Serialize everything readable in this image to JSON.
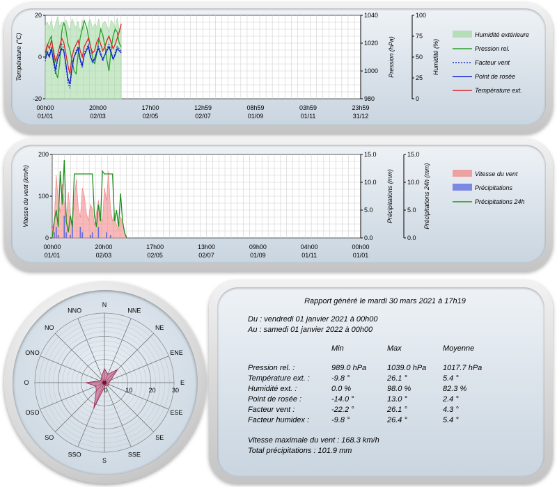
{
  "colors": {
    "humidity": "#9fd79f",
    "pressure": "#2a9d2a",
    "windchill": "#2030c8",
    "dewpoint": "#1020d0",
    "temperature": "#e0202a",
    "wind": "#f08080",
    "rain": "#5060e0",
    "rain24": "#1f8f1f",
    "rose": "#c04070"
  },
  "chart1": {
    "ylabel_left": "Température (°C)",
    "ylabel_right1": "Pression (hPa)",
    "ylabel_right2": "Humidité (%)",
    "left_ticks": [
      "20",
      "0",
      "-20"
    ],
    "right1_ticks": [
      "1040",
      "1020",
      "1000",
      "980"
    ],
    "right2_ticks": [
      "100",
      "75",
      "50",
      "25",
      "0"
    ],
    "x_ticks": [
      {
        "t": "00h00",
        "d": "01/01"
      },
      {
        "t": "20h00",
        "d": "02/03"
      },
      {
        "t": "17h00",
        "d": "02/05"
      },
      {
        "t": "12h59",
        "d": "02/07"
      },
      {
        "t": "08h59",
        "d": "01/09"
      },
      {
        "t": "03h59",
        "d": "01/11"
      },
      {
        "t": "23h59",
        "d": "31/12"
      }
    ],
    "legend": [
      "Humidité extérieure",
      "Pression rel.",
      "Facteur vent",
      "Point de rosée",
      "Température ext."
    ]
  },
  "chart2": {
    "ylabel_left": "Vitesse du vent (km/h)",
    "ylabel_right1": "Précipitations (mm)",
    "ylabel_right2": "Précipitations 24h (mm)",
    "left_ticks": [
      "200",
      "100",
      "0"
    ],
    "right1_ticks": [
      "15.0",
      "10.0",
      "5.0",
      "0.0"
    ],
    "right2_ticks": [
      "15.0",
      "10.0",
      "5.0",
      "0.0"
    ],
    "x_ticks": [
      {
        "t": "00h00",
        "d": "01/01"
      },
      {
        "t": "20h00",
        "d": "02/03"
      },
      {
        "t": "17h00",
        "d": "02/05"
      },
      {
        "t": "13h00",
        "d": "02/07"
      },
      {
        "t": "09h00",
        "d": "01/09"
      },
      {
        "t": "04h00",
        "d": "01/11"
      },
      {
        "t": "00h00",
        "d": "01/01"
      }
    ],
    "legend": [
      "Vitesse du vent",
      "Précipitations",
      "Précipitations 24h"
    ]
  },
  "rose": {
    "directions": [
      "N",
      "NNE",
      "NE",
      "ENE",
      "E",
      "ESE",
      "SE",
      "SSE",
      "S",
      "SSO",
      "SO",
      "OSO",
      "O",
      "ONO",
      "NO",
      "NNO"
    ],
    "ring_labels": [
      "0",
      "10",
      "20",
      "30"
    ]
  },
  "chart_data": [
    {
      "type": "line",
      "title": "",
      "x_range": [
        "2021-01-01 00:00",
        "2021-12-31 23:59"
      ],
      "series": [
        {
          "name": "Humidité extérieure",
          "axis": "Humidité (%)",
          "kind": "area",
          "ylim": [
            0,
            100
          ],
          "x_end": "2021-03-30",
          "values": [
            88,
            92,
            85,
            95,
            80,
            90,
            98,
            86,
            92,
            78,
            95,
            88,
            82,
            96,
            90,
            85,
            93,
            80,
            94,
            88,
            75,
            92,
            95,
            84,
            90,
            86,
            96,
            82,
            90,
            93,
            88,
            80,
            94,
            91,
            85,
            97,
            83,
            90
          ]
        },
        {
          "name": "Pression rel.",
          "axis": "Pression (hPa)",
          "ylim": [
            980,
            1040
          ],
          "x_end": "2021-03-30",
          "values": [
            1010,
            1018,
            1022,
            1025,
            1012,
            1000,
            995,
            1005,
            1028,
            1035,
            1030,
            1020,
            1015,
            1008,
            1000,
            998,
            1012,
            1024,
            1030,
            1036,
            1032,
            1025,
            1018,
            1010,
            1005,
            1012,
            1022,
            1030,
            1026,
            1018,
            1008,
            1000,
            1015,
            1025,
            1030,
            1028,
            1020,
            1017
          ]
        },
        {
          "name": "Facteur vent",
          "axis": "Température (°C)",
          "ylim": [
            -20,
            20
          ],
          "x_end": "2021-03-30",
          "values": [
            -2,
            3,
            1,
            5,
            -3,
            -8,
            -1,
            2,
            6,
            4,
            -4,
            -12,
            -15,
            -6,
            0,
            3,
            5,
            -2,
            -5,
            2,
            4,
            6,
            1,
            -3,
            -1,
            3,
            5,
            2,
            -2,
            1,
            4,
            6,
            3,
            -1,
            2,
            5,
            4,
            3
          ]
        },
        {
          "name": "Point de rosée",
          "axis": "Température (°C)",
          "ylim": [
            -20,
            20
          ],
          "x_end": "2021-03-30",
          "values": [
            -1,
            2,
            0,
            4,
            -2,
            -6,
            -1,
            1,
            4,
            3,
            -3,
            -10,
            -13,
            -5,
            0,
            2,
            4,
            -1,
            -4,
            1,
            3,
            5,
            0,
            -2,
            -1,
            2,
            4,
            1,
            -1,
            1,
            3,
            5,
            2,
            -1,
            1,
            4,
            3,
            2
          ]
        },
        {
          "name": "Température ext.",
          "axis": "Température (°C)",
          "ylim": [
            -20,
            20
          ],
          "x_end": "2021-03-30",
          "values": [
            2,
            6,
            4,
            8,
            3,
            -2,
            1,
            5,
            9,
            7,
            2,
            -4,
            -8,
            0,
            4,
            6,
            8,
            3,
            0,
            5,
            7,
            9,
            5,
            2,
            3,
            7,
            9,
            6,
            3,
            5,
            8,
            10,
            7,
            4,
            6,
            9,
            12,
            16
          ]
        }
      ]
    },
    {
      "type": "line",
      "title": "",
      "x_range": [
        "2021-01-01 00:00",
        "2022-01-01 00:00"
      ],
      "series": [
        {
          "name": "Vitesse du vent",
          "axis": "Vitesse du vent (km/h)",
          "kind": "area",
          "ylim": [
            0,
            200
          ],
          "x_end": "2021-03-30",
          "values": [
            20,
            40,
            150,
            90,
            60,
            130,
            80,
            40,
            110,
            60,
            30,
            90,
            140,
            70,
            50,
            120,
            100,
            60,
            40,
            80,
            70,
            30,
            60,
            90,
            50,
            40,
            120,
            90,
            160,
            70,
            40,
            60,
            30,
            20,
            50,
            40,
            10,
            5
          ]
        },
        {
          "name": "Précipitations",
          "axis": "Précipitations (mm)",
          "kind": "bars",
          "ylim": [
            0,
            15
          ],
          "x_end": "2021-03-30",
          "values": [
            0,
            1,
            2,
            0.5,
            0,
            0,
            4,
            1,
            0,
            0.5,
            3,
            0,
            0,
            0,
            2,
            1,
            0,
            0,
            0,
            0.5,
            1,
            0,
            0,
            2,
            0,
            0,
            0,
            1,
            0,
            0.5,
            0,
            0,
            0,
            0,
            0,
            0,
            0,
            0
          ]
        },
        {
          "name": "Précipitations 24h",
          "axis": "Précipitations 24h (mm)",
          "ylim": [
            0,
            15
          ],
          "x_end": "2021-03-30",
          "values": [
            0,
            3,
            5,
            2,
            12,
            6,
            14,
            3,
            1,
            4,
            2,
            11.5,
            11.5,
            11.5,
            11.5,
            11.5,
            11.5,
            11.5,
            11.5,
            11.5,
            11.5,
            4,
            2,
            6,
            3,
            12,
            11.5,
            11.5,
            11.5,
            11.5,
            11.5,
            3,
            5,
            2,
            8,
            3,
            1,
            0
          ]
        }
      ]
    },
    {
      "type": "radar",
      "title": "",
      "categories": [
        "N",
        "NNE",
        "NE",
        "ENE",
        "E",
        "ESE",
        "SE",
        "SSE",
        "S",
        "SSO",
        "SO",
        "OSO",
        "O",
        "ONO",
        "NO",
        "NNO"
      ],
      "range": [
        0,
        30
      ],
      "series": [
        {
          "name": "",
          "values": [
            6,
            4,
            8,
            3,
            2,
            2,
            2,
            1,
            2,
            12,
            5,
            4,
            8,
            2,
            2,
            3
          ]
        }
      ]
    }
  ],
  "report": {
    "generated": "Rapport généré le mardi 30 mars 2021 à 17h19",
    "from": "Du : vendredi 01 janvier 2021 à 00h00",
    "to": "Au : samedi 01 janvier 2022 à 00h00",
    "headers": [
      "Min",
      "Max",
      "Moyenne"
    ],
    "rows": [
      {
        "label": "Pression rel. :",
        "min": "989.0 hPa",
        "max": "1039.0 hPa",
        "avg": "1017.7 hPa"
      },
      {
        "label": "Température ext. :",
        "min": "-9.8 °",
        "max": "26.1 °",
        "avg": "5.4 °"
      },
      {
        "label": "Humidité ext. :",
        "min": "0.0 %",
        "max": "98.0 %",
        "avg": "82.3 %"
      },
      {
        "label": "Point de rosée :",
        "min": "-14.0 °",
        "max": "13.0 °",
        "avg": "2.4 °"
      },
      {
        "label": "Facteur vent :",
        "min": "-22.2 °",
        "max": "26.1 °",
        "avg": "4.3 °"
      },
      {
        "label": "Facteur humidex :",
        "min": "-9.8 °",
        "max": "26.4 °",
        "avg": "5.4 °"
      }
    ],
    "max_wind": "Vitesse maximale du vent : 168.3 km/h",
    "total_rain": "Total précipitations : 101.9 mm"
  }
}
